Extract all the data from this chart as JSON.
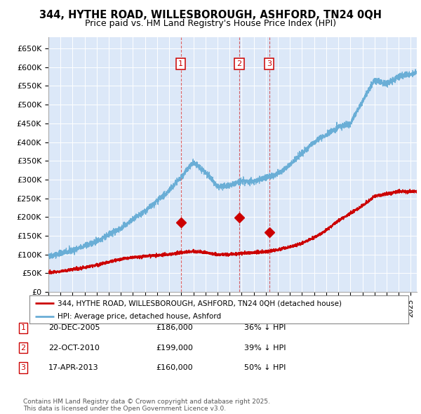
{
  "title_line1": "344, HYTHE ROAD, WILLESBOROUGH, ASHFORD, TN24 0QH",
  "title_line2": "Price paid vs. HM Land Registry's House Price Index (HPI)",
  "plot_bg_color": "#dce8f8",
  "hpi_color": "#6aaed6",
  "price_color": "#cc0000",
  "ylim": [
    0,
    680000
  ],
  "yticks": [
    0,
    50000,
    100000,
    150000,
    200000,
    250000,
    300000,
    350000,
    400000,
    450000,
    500000,
    550000,
    600000,
    650000
  ],
  "ytick_labels": [
    "£0",
    "£50K",
    "£100K",
    "£150K",
    "£200K",
    "£250K",
    "£300K",
    "£350K",
    "£400K",
    "£450K",
    "£500K",
    "£550K",
    "£600K",
    "£650K"
  ],
  "xmin": 1995.0,
  "xmax": 2025.5,
  "sale_dates": [
    2005.97,
    2010.81,
    2013.29
  ],
  "sale_prices": [
    186000,
    199000,
    160000
  ],
  "sale_labels": [
    "1",
    "2",
    "3"
  ],
  "sale_info": [
    {
      "num": "1",
      "date": "20-DEC-2005",
      "price": "£186,000",
      "pct": "36% ↓ HPI"
    },
    {
      "num": "2",
      "date": "22-OCT-2010",
      "price": "£199,000",
      "pct": "39% ↓ HPI"
    },
    {
      "num": "3",
      "date": "17-APR-2013",
      "price": "£160,000",
      "pct": "50% ↓ HPI"
    }
  ],
  "legend_line1": "344, HYTHE ROAD, WILLESBOROUGH, ASHFORD, TN24 0QH (detached house)",
  "legend_line2": "HPI: Average price, detached house, Ashford",
  "footer": "Contains HM Land Registry data © Crown copyright and database right 2025.\nThis data is licensed under the Open Government Licence v3.0.",
  "hpi_anchors_x": [
    1995,
    1997,
    1999,
    2001,
    2003,
    2005,
    2007,
    2008,
    2009,
    2010,
    2011,
    2012,
    2013,
    2014,
    2015,
    2016,
    2017,
    2018,
    2019,
    2020,
    2021,
    2022,
    2023,
    2024,
    2025.5
  ],
  "hpi_anchors_y": [
    95000,
    110000,
    135000,
    170000,
    215000,
    270000,
    345000,
    320000,
    280000,
    285000,
    295000,
    295000,
    305000,
    315000,
    340000,
    370000,
    400000,
    420000,
    440000,
    450000,
    510000,
    565000,
    555000,
    575000,
    585000
  ],
  "price_anchors_x": [
    1995,
    1996,
    1997,
    1998,
    1999,
    2000,
    2001,
    2002,
    2003,
    2004,
    2005,
    2006,
    2007,
    2008,
    2009,
    2010,
    2011,
    2012,
    2013,
    2014,
    2015,
    2016,
    2017,
    2018,
    2019,
    2020,
    2021,
    2022,
    2023,
    2024,
    2025.5
  ],
  "price_anchors_y": [
    52000,
    55000,
    60000,
    65000,
    72000,
    80000,
    88000,
    92000,
    95000,
    98000,
    100000,
    105000,
    108000,
    105000,
    100000,
    100000,
    103000,
    105000,
    108000,
    112000,
    120000,
    130000,
    145000,
    165000,
    190000,
    210000,
    230000,
    255000,
    262000,
    268000,
    268000
  ]
}
